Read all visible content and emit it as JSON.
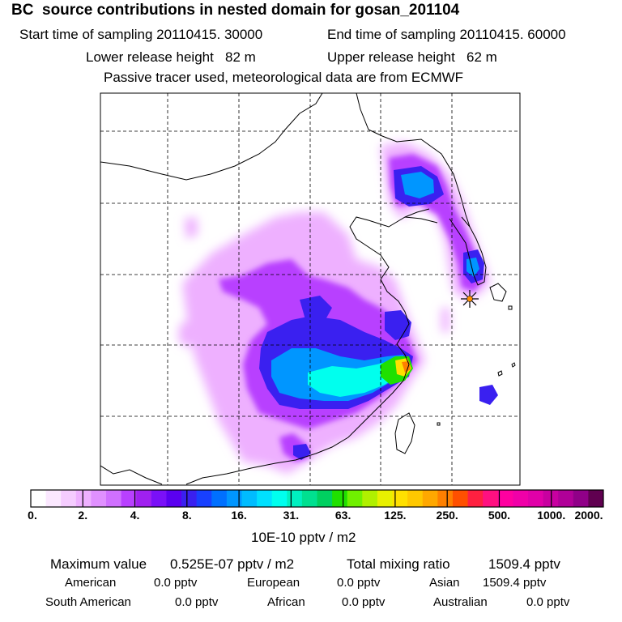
{
  "header": {
    "title": "BC  source contributions in nested domain for gosan_201104",
    "start_label": "Start time of sampling 20110415. 30000",
    "end_label": "End time of sampling 20110415. 60000",
    "lower_label": "Lower release height   82 m",
    "upper_label": "Upper release height   62 m",
    "note": "Passive tracer used, meteorological data are from ECMWF"
  },
  "colorbar": {
    "ticks": [
      "0.",
      "2.",
      "4.",
      "8.",
      "16.",
      "31.",
      "63.",
      "125.",
      "250.",
      "500.",
      "1000.",
      "2000."
    ],
    "unit": "10E-10 pptv / m2",
    "colors": [
      "#ffffff",
      "#fbe8ff",
      "#f5ccff",
      "#eeb0ff",
      "#e090ff",
      "#d070ff",
      "#b840ff",
      "#a020f0",
      "#7a10f8",
      "#5a00f0",
      "#3a20f0",
      "#1840ff",
      "#0070ff",
      "#0096ff",
      "#00bcff",
      "#00e0ff",
      "#00ffee",
      "#00f0c0",
      "#00e090",
      "#00d060",
      "#20e000",
      "#70f000",
      "#b0f000",
      "#e8f000",
      "#ffe000",
      "#ffc800",
      "#ffa800",
      "#ff8000",
      "#ff5000",
      "#ff2040",
      "#ff1080",
      "#ff00a0",
      "#f000a8",
      "#e000a8",
      "#c800a0",
      "#b00098",
      "#900088",
      "#600050"
    ]
  },
  "summary": {
    "max_label": "Maximum value",
    "max_value": "0.525E-07 pptv / m2",
    "total_label": "Total mixing ratio",
    "total_value": "1509.4 pptv"
  },
  "regions": [
    {
      "name": "American",
      "value": "0.0 pptv"
    },
    {
      "name": "European",
      "value": "0.0 pptv"
    },
    {
      "name": "Asian",
      "value": "1509.4 pptv"
    },
    {
      "name": "South American",
      "value": "0.0 pptv"
    },
    {
      "name": "African",
      "value": "0.0 pptv"
    },
    {
      "name": "Australian",
      "value": "0.0 pptv"
    }
  ],
  "map": {
    "receptor_icon": "star-marker-icon",
    "plume_colors": {
      "light": "#eeb0ff",
      "violet": "#b840ff",
      "blue": "#3a20f0",
      "azure": "#0096ff",
      "cyan": "#00ffee",
      "green": "#20e000",
      "yellow": "#ffe000",
      "orange": "#ff8000"
    }
  }
}
